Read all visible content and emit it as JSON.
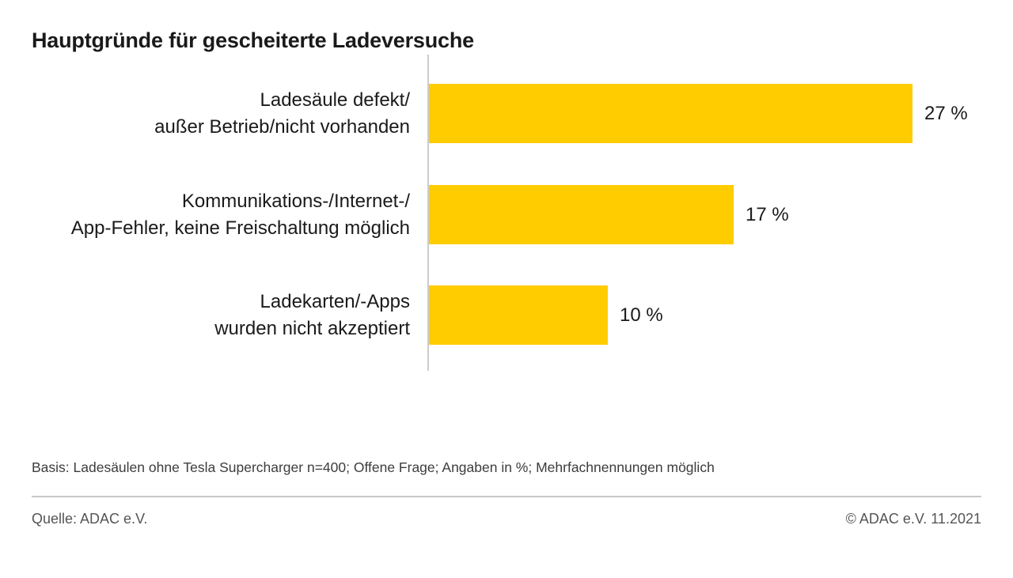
{
  "title": "Hauptgründe für gescheiterte Ladeversuche",
  "chart_data": {
    "type": "bar",
    "orientation": "horizontal",
    "title": "Hauptgründe für gescheiterte Ladeversuche",
    "categories": [
      "Ladesäule defekt/\naußer Betrieb/nicht vorhanden",
      "Kommunikations-/Internet-/\nApp-Fehler, keine Freischaltung möglich",
      "Ladekarten/-Apps\nwurden nicht akzeptiert"
    ],
    "values": [
      27,
      17,
      10
    ],
    "value_labels": [
      "27 %",
      "17 %",
      "10 %"
    ],
    "unit": "%",
    "xlim": [
      0,
      30
    ],
    "grid": false,
    "legend": false,
    "bar_color": "#ffcc00",
    "axis_color": "#cccccc"
  },
  "footnote": "Basis: Ladesäulen ohne Tesla Supercharger n=400; Offene Frage; Angaben in %; Mehrfachnennungen möglich",
  "footer": {
    "source": "Quelle: ADAC e.V.",
    "copyright": "© ADAC e.V. 11.2021"
  },
  "colors": {
    "bar": "#ffcc00",
    "axis": "#cccccc",
    "text": "#1a1a1a",
    "footnote_text": "#3d3d3d",
    "footer_text": "#555555",
    "divider": "#c8c8c8",
    "background": "#ffffff"
  }
}
